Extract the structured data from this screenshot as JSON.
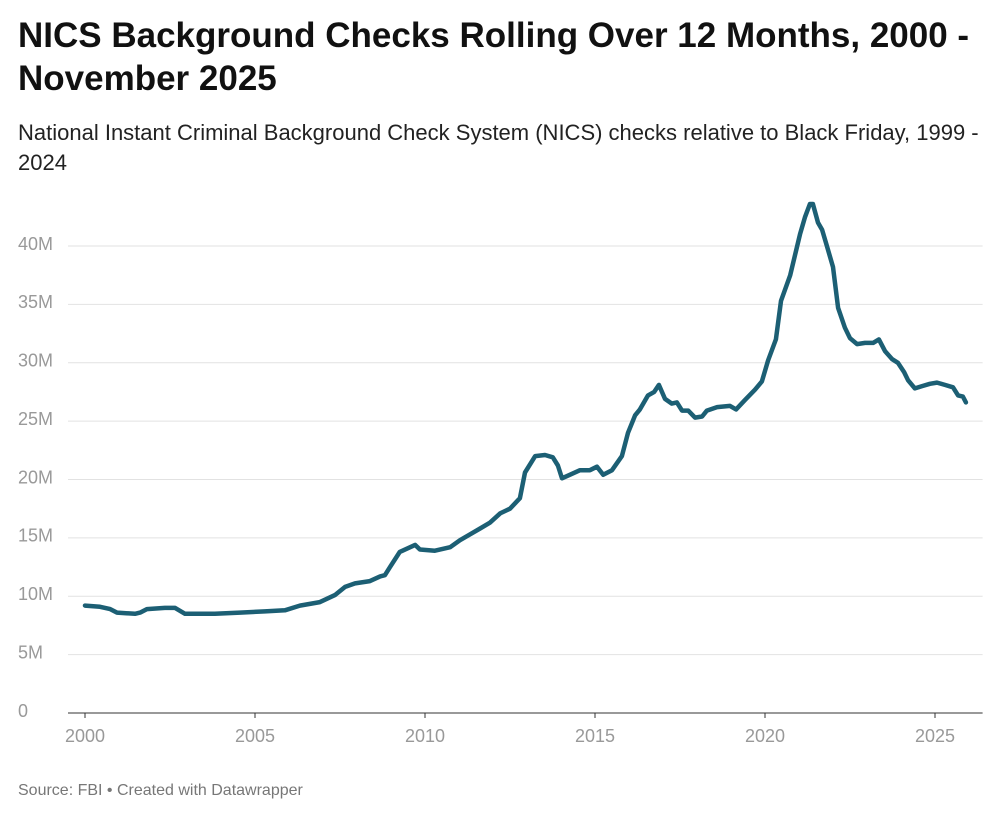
{
  "chart_data": {
    "type": "line",
    "title": "NICS Background Checks Rolling Over 12 Months, 2000 - November 2025",
    "subtitle": "National Instant Criminal Background Check System (NICS) checks relative to Black Friday, 1999 - 2024",
    "source": "Source: FBI • Created with Datawrapper",
    "x": [
      2000.0,
      2000.44,
      2000.74,
      2000.94,
      2001.47,
      2001.62,
      2001.82,
      2002.35,
      2002.65,
      2002.94,
      2003.82,
      2004.56,
      2005.29,
      2005.88,
      2006.32,
      2006.91,
      2007.35,
      2007.65,
      2007.94,
      2008.38,
      2008.68,
      2008.82,
      2008.97,
      2009.26,
      2009.71,
      2009.85,
      2010.29,
      2010.74,
      2011.03,
      2011.32,
      2011.62,
      2011.91,
      2012.21,
      2012.5,
      2012.79,
      2012.94,
      2013.24,
      2013.53,
      2013.76,
      2013.91,
      2014.03,
      2014.26,
      2014.56,
      2014.85,
      2015.06,
      2015.24,
      2015.5,
      2015.79,
      2015.97,
      2016.18,
      2016.32,
      2016.56,
      2016.74,
      2016.88,
      2017.06,
      2017.26,
      2017.41,
      2017.56,
      2017.74,
      2017.94,
      2018.15,
      2018.29,
      2018.59,
      2018.97,
      2019.15,
      2019.41,
      2019.71,
      2019.91,
      2020.09,
      2020.32,
      2020.47,
      2020.74,
      2021.03,
      2021.18,
      2021.32,
      2021.41,
      2021.56,
      2021.68,
      2021.82,
      2022.0,
      2022.15,
      2022.35,
      2022.5,
      2022.71,
      2022.94,
      2023.18,
      2023.35,
      2023.53,
      2023.74,
      2023.91,
      2024.09,
      2024.21,
      2024.41,
      2024.62,
      2024.85,
      2025.06,
      2025.29,
      2025.53,
      2025.68,
      2025.82,
      2025.91
    ],
    "series": [
      {
        "name": "NICS checks",
        "color": "#1c5f74",
        "values": [
          9.2,
          9.1,
          8.9,
          8.6,
          8.5,
          8.6,
          8.9,
          9.0,
          9.0,
          8.5,
          8.5,
          8.6,
          8.7,
          8.8,
          9.2,
          9.5,
          10.1,
          10.8,
          11.1,
          11.3,
          11.7,
          11.8,
          12.5,
          13.8,
          14.4,
          14.0,
          13.9,
          14.2,
          14.8,
          15.3,
          15.8,
          16.3,
          17.1,
          17.5,
          18.4,
          20.6,
          22.0,
          22.1,
          21.9,
          21.2,
          20.1,
          20.4,
          20.8,
          20.8,
          21.1,
          20.4,
          20.8,
          22.0,
          24.0,
          25.5,
          26.0,
          27.2,
          27.5,
          28.1,
          26.9,
          26.5,
          26.6,
          25.9,
          25.9,
          25.3,
          25.4,
          25.9,
          26.2,
          26.3,
          26.0,
          26.8,
          27.7,
          28.4,
          30.2,
          32.0,
          35.3,
          37.5,
          41.0,
          42.5,
          43.6,
          43.6,
          42.0,
          41.4,
          40.0,
          38.2,
          34.7,
          33.0,
          32.1,
          31.6,
          31.7,
          31.7,
          32.0,
          31.0,
          30.3,
          30.0,
          29.2,
          28.5,
          27.8,
          28.0,
          28.2,
          28.3,
          28.1,
          27.9,
          27.2,
          27.1,
          26.6
        ]
      }
    ],
    "xlim": [
      1999.5,
      2026.4
    ],
    "xticks": [
      2000,
      2005,
      2010,
      2015,
      2020,
      2025
    ],
    "ylim": [
      0,
      44
    ],
    "yticks": [
      0,
      {
        "value": 5,
        "label": "5M"
      },
      {
        "value": 10,
        "label": "10M"
      },
      {
        "value": 15,
        "label": "15M"
      },
      {
        "value": 20,
        "label": "20M"
      },
      {
        "value": 25,
        "label": "25M"
      },
      {
        "value": 30,
        "label": "30M"
      },
      {
        "value": 35,
        "label": "35M"
      },
      {
        "value": 40,
        "label": "40M"
      }
    ],
    "grid": true
  }
}
